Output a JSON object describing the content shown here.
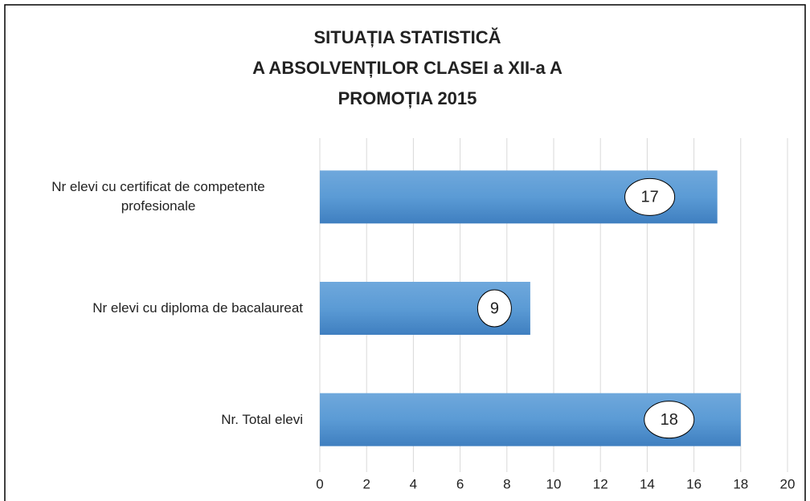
{
  "chart_data": {
    "type": "barh",
    "title": [
      "SITUAȚIA STATISTICĂ",
      "A ABSOLVENȚILOR CLASEI a XII-a A",
      "PROMOȚIA 2015"
    ],
    "categories": [
      "Nr elevi cu certificat de competente profesionale",
      "Nr elevi cu diploma de bacalaureat",
      "Nr. Total elevi"
    ],
    "values": [
      17,
      9,
      18
    ],
    "color": "#5b9bd5",
    "xlim": [
      0,
      20
    ],
    "xticks": [
      0,
      2,
      4,
      6,
      8,
      10,
      12,
      14,
      16,
      18,
      20
    ],
    "grid": true
  }
}
